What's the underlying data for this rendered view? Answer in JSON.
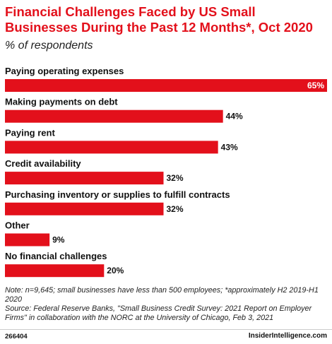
{
  "header": {
    "title": "Financial Challenges Faced by US Small Businesses During the Past 12 Months*, Oct 2020",
    "subtitle": "% of respondents"
  },
  "chart_data": {
    "type": "bar",
    "orientation": "horizontal",
    "categories": [
      "Paying operating expenses",
      "Making payments on debt",
      "Paying rent",
      "Credit availability",
      "Purchasing inventory or supplies to fulfill contracts",
      "Other",
      "No financial challenges"
    ],
    "values": [
      65,
      44,
      43,
      32,
      32,
      9,
      20
    ],
    "value_labels": [
      "65%",
      "44%",
      "43%",
      "32%",
      "32%",
      "9%",
      "20%"
    ],
    "unit": "%",
    "xlim": [
      0,
      65
    ],
    "grid": false,
    "legend": "none",
    "bar_color": "#e3101b",
    "label_inside_color": "#ffffff",
    "label_outside_color": "#111111"
  },
  "footer": {
    "note": "Note: n=9,645; small businesses have less than 500 employees; *approximately H2 2019-H1 2020",
    "source": "Source: Federal Reserve Banks, \"Small Business Credit Survey: 2021 Report on Employer Firms\" in collaboration with the NORC at the University of Chicago, Feb 3, 2021",
    "chart_id": "266404",
    "brand": "InsiderIntelligence.com"
  }
}
